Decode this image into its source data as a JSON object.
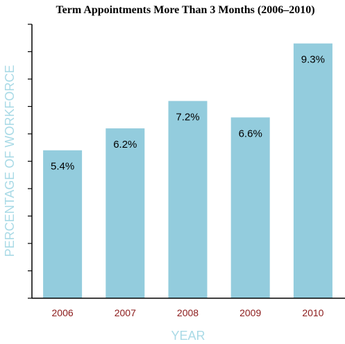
{
  "chart_data": {
    "type": "bar",
    "title": "Term Appointments More Than 3 Months (2006–2010)",
    "xlabel": "YEAR",
    "ylabel": "PERCENTAGE OF WORKFORCE",
    "categories": [
      "2006",
      "2007",
      "2008",
      "2009",
      "2010"
    ],
    "values": [
      5.4,
      6.2,
      7.2,
      6.6,
      9.3
    ],
    "value_labels": [
      "5.4%",
      "6.2%",
      "7.2%",
      "6.6%",
      "9.3%"
    ],
    "ylim": [
      0,
      10
    ],
    "y_tick_step": 1,
    "grid": false,
    "colors": {
      "bar": "#93CCDD",
      "category_label": "#8B1A1A",
      "axis_title": "#A9DAE6",
      "axis_line": "#000000"
    }
  }
}
